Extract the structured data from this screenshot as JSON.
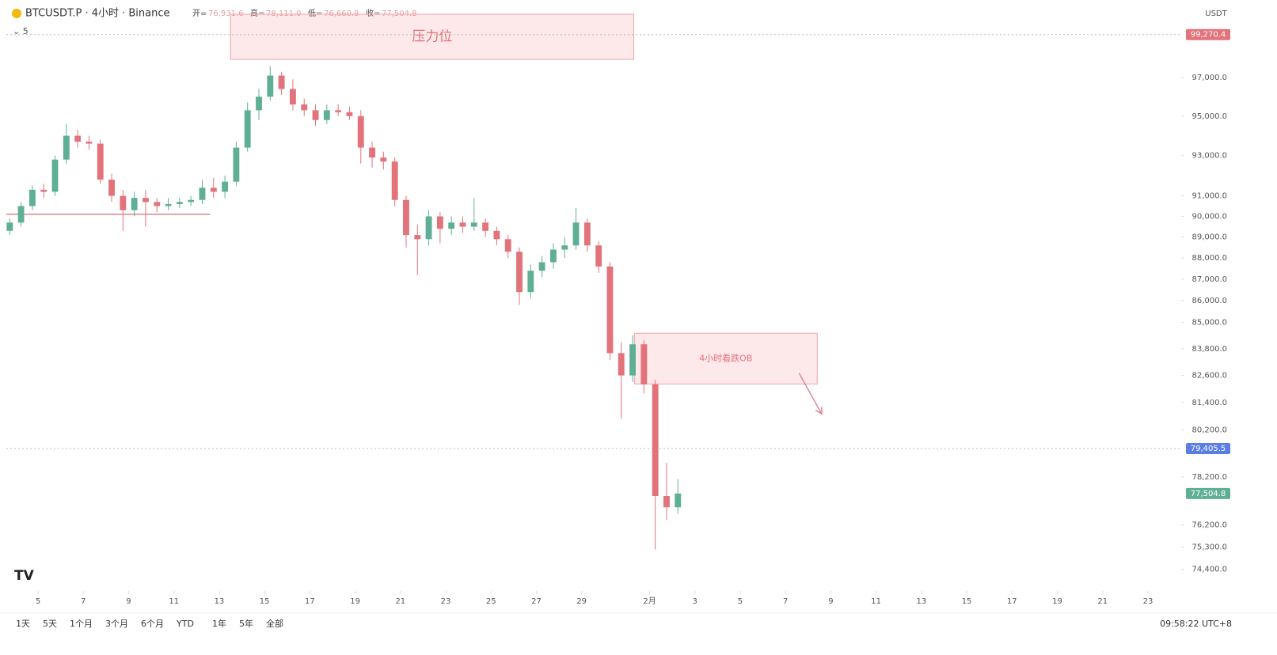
{
  "chart_data": {
    "type": "candlestick",
    "symbol": "BTCUSDT.P · 4小时 · Binance",
    "ohlc_names": [
      "开=",
      "高=",
      "低=",
      "收="
    ],
    "ohlc_labels": [
      "76,931.6",
      "78,111.0",
      "76,660.8",
      "77,504.8"
    ],
    "indicator_label": "⌄ 5",
    "currency": "USDT",
    "up_color": "#5fae96",
    "down_color": "#e2737b",
    "log_scale": true,
    "x": [
      2.75,
      3.25,
      3.75,
      4.25,
      4.75,
      5.25,
      5.75,
      6.25,
      6.75,
      7.25,
      7.75,
      8.25,
      8.75,
      9.25,
      9.75,
      10.25,
      10.75,
      11.25,
      11.75,
      12.25,
      12.75,
      13.25,
      13.75,
      14.25,
      14.75,
      15.25,
      15.75,
      16.25,
      16.75,
      17.25,
      17.75,
      18.25,
      18.75,
      19.25,
      19.75,
      20.25,
      20.75,
      21.25,
      21.75,
      22.25,
      22.75,
      23.25,
      23.75,
      24.25,
      24.75,
      25.25,
      25.75,
      26.25,
      26.75,
      27.25,
      27.75,
      28.25,
      28.75,
      29.25,
      29.75,
      30.25,
      30.75,
      31.25,
      31.75,
      32.25
    ],
    "open": [
      89300,
      89700,
      90500,
      91300,
      91200,
      92800,
      94000,
      93700,
      93600,
      91800,
      91000,
      90300,
      90900,
      90700,
      90500,
      90600,
      90700,
      90800,
      91400,
      91200,
      91700,
      93400,
      95300,
      96000,
      97100,
      96400,
      95600,
      95300,
      94800,
      95300,
      95200,
      95000,
      93400,
      92900,
      92700,
      90800,
      89100,
      88900,
      90000,
      89400,
      89700,
      89500,
      89700,
      89300,
      88900,
      88300,
      86400,
      87400,
      87800,
      88400,
      88600,
      89700,
      88600,
      87600,
      83600,
      82600,
      84000,
      82200,
      77400,
      76931.6
    ],
    "high": [
      89900,
      90700,
      91500,
      91600,
      93000,
      94600,
      94300,
      94000,
      93800,
      92100,
      91300,
      91200,
      91300,
      90900,
      90900,
      90900,
      91000,
      91800,
      91900,
      92000,
      93700,
      95700,
      96400,
      97600,
      97300,
      96900,
      95900,
      95600,
      95600,
      95600,
      95500,
      95300,
      93700,
      93200,
      92900,
      91000,
      89600,
      90300,
      90200,
      90000,
      90000,
      90900,
      89900,
      89500,
      89100,
      88500,
      87700,
      88100,
      88700,
      89000,
      90400,
      89900,
      88800,
      87800,
      84100,
      84400,
      84200,
      82400,
      78800,
      78111
    ],
    "low": [
      89100,
      89500,
      90300,
      90900,
      91000,
      92600,
      93400,
      93300,
      91600,
      90700,
      89300,
      90000,
      89500,
      90200,
      90300,
      90400,
      90500,
      90600,
      90900,
      90900,
      91500,
      93200,
      94800,
      95800,
      96100,
      95300,
      95000,
      94500,
      94600,
      95000,
      94800,
      92600,
      92400,
      92300,
      90500,
      88500,
      87200,
      88600,
      88700,
      89100,
      89200,
      89300,
      89000,
      88600,
      88000,
      85800,
      86100,
      87100,
      87500,
      88000,
      88400,
      88300,
      87300,
      83300,
      80700,
      82300,
      81800,
      75200,
      76400,
      76660.8
    ],
    "close": [
      89700,
      90500,
      91300,
      91200,
      92800,
      94000,
      93700,
      93600,
      91800,
      91000,
      90300,
      90900,
      90700,
      90500,
      90600,
      90700,
      90800,
      91400,
      91200,
      91700,
      93400,
      95300,
      96000,
      97100,
      96400,
      95600,
      95300,
      94800,
      95300,
      95200,
      95000,
      93400,
      92900,
      92700,
      90800,
      89100,
      88900,
      90000,
      89400,
      89700,
      89500,
      89700,
      89300,
      88900,
      88300,
      86400,
      87400,
      87800,
      88400,
      88600,
      89700,
      88600,
      87600,
      83600,
      82600,
      84000,
      82200,
      77400,
      76931.6,
      77504.8
    ],
    "xlim": [
      2.6,
      54.4
    ],
    "ylim": [
      73600,
      101140
    ],
    "xticks": [
      {
        "value": 4,
        "label": "5"
      },
      {
        "value": 6,
        "label": "7"
      },
      {
        "value": 8,
        "label": "9"
      },
      {
        "value": 10,
        "label": "11"
      },
      {
        "value": 12,
        "label": "13"
      },
      {
        "value": 14,
        "label": "15"
      },
      {
        "value": 16,
        "label": "17"
      },
      {
        "value": 18,
        "label": "19"
      },
      {
        "value": 20,
        "label": "21"
      },
      {
        "value": 22,
        "label": "23"
      },
      {
        "value": 24,
        "label": "25"
      },
      {
        "value": 26,
        "label": "27"
      },
      {
        "value": 28,
        "label": "29"
      },
      {
        "value": 31,
        "label": "2月"
      },
      {
        "value": 33,
        "label": "3"
      },
      {
        "value": 35,
        "label": "5"
      },
      {
        "value": 37,
        "label": "7"
      },
      {
        "value": 39,
        "label": "9"
      },
      {
        "value": 41,
        "label": "11"
      },
      {
        "value": 43,
        "label": "13"
      },
      {
        "value": 45,
        "label": "15"
      },
      {
        "value": 47,
        "label": "17"
      },
      {
        "value": 49,
        "label": "19"
      },
      {
        "value": 51,
        "label": "21"
      },
      {
        "value": 53,
        "label": "23"
      }
    ],
    "yticks": [
      {
        "value": 97000,
        "label": "97,000.0"
      },
      {
        "value": 95000,
        "label": "95,000.0"
      },
      {
        "value": 93000,
        "label": "93,000.0"
      },
      {
        "value": 91000,
        "label": "91,000.0"
      },
      {
        "value": 90000,
        "label": "90,000.0"
      },
      {
        "value": 89000,
        "label": "89,000.0"
      },
      {
        "value": 88000,
        "label": "88,000.0"
      },
      {
        "value": 87000,
        "label": "87,000.0"
      },
      {
        "value": 86000,
        "label": "86,000.0"
      },
      {
        "value": 85000,
        "label": "85,000.0"
      },
      {
        "value": 83800,
        "label": "83,800.0"
      },
      {
        "value": 82600,
        "label": "82,600.0"
      },
      {
        "value": 81400,
        "label": "81,400.0"
      },
      {
        "value": 80200,
        "label": "80,200.0"
      },
      {
        "value": 78200,
        "label": "78,200.0"
      },
      {
        "value": 76200,
        "label": "76,200.0"
      },
      {
        "value": 75300,
        "label": "75,300.0"
      },
      {
        "value": 74400,
        "label": "74,400.0"
      }
    ],
    "price_lines": [
      {
        "value": 99270.4,
        "label": "99,270.4",
        "color": "#e2737b"
      },
      {
        "value": 79405.5,
        "label": "79,405.5",
        "color": "#5b7ee5"
      },
      {
        "value": 77504.8,
        "label": "77,504.8",
        "color": "#5fae96"
      }
    ],
    "zones": [
      {
        "label": "压力位",
        "x": [
          12.5,
          30.3
        ],
        "y": [
          97950,
          100370
        ]
      },
      {
        "label": "4小时看跌OB",
        "x": [
          30.33,
          38.4
        ],
        "y": [
          82220,
          84500
        ]
      }
    ],
    "trend_line": {
      "x": [
        2.6,
        11.6
      ],
      "y": [
        90100,
        90100
      ]
    },
    "arrow": {
      "x": [
        37.6,
        38.6
      ],
      "y": [
        82700,
        80900
      ]
    },
    "ranges": [
      "1天",
      "5天",
      "1个月",
      "3个月",
      "6个月",
      "YTD",
      "1年",
      "5年",
      "全部"
    ],
    "clock": "09:58:22 UTC+8"
  }
}
